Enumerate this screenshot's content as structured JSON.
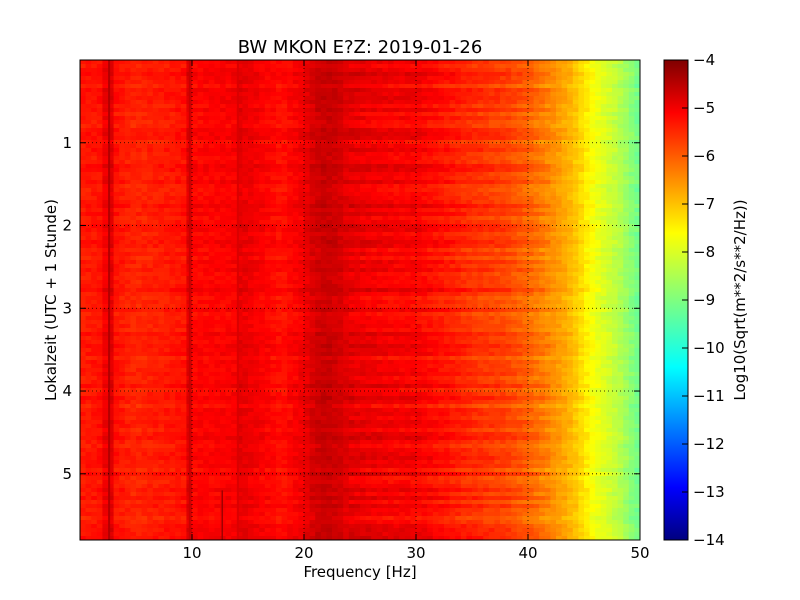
{
  "chart_data": {
    "type": "heatmap",
    "title": "BW MKON E?Z: 2019-01-26",
    "xlabel": "Frequency [Hz]",
    "ylabel": "Lokalzeit (UTC + 1 Stunde)",
    "xlim": [
      0,
      50
    ],
    "ylim": [
      5.8,
      0
    ],
    "x_ticks": [
      10,
      20,
      30,
      40,
      50
    ],
    "y_ticks": [
      1,
      2,
      3,
      4,
      5
    ],
    "grid": true,
    "colorbar": {
      "label": "Log10(Sqrt(m**2/s**2/Hz))",
      "range": [
        -14,
        -4
      ],
      "ticks": [
        -4,
        -5,
        -6,
        -7,
        -8,
        -9,
        -10,
        -11,
        -12,
        -13,
        -14
      ],
      "colormap": "jet"
    },
    "spectrum_profile": {
      "frequency_hz": [
        0,
        2,
        2.6,
        3,
        5,
        9.5,
        9.8,
        10,
        14,
        14.2,
        18,
        20,
        21,
        22,
        23,
        24,
        26,
        28,
        30,
        32,
        35,
        38,
        40,
        42,
        44,
        45,
        46,
        48,
        50
      ],
      "log10_amplitude": [
        -5.5,
        -5.4,
        -4.7,
        -5.4,
        -5.6,
        -5.4,
        -4.9,
        -5.3,
        -5.2,
        -5.0,
        -5.4,
        -5.1,
        -4.8,
        -4.7,
        -4.8,
        -5.0,
        -5.1,
        -5.2,
        -5.2,
        -5.4,
        -5.7,
        -5.9,
        -6.2,
        -6.6,
        -7.1,
        -7.5,
        -7.9,
        -8.4,
        -9.2
      ]
    },
    "vertical_lines_hz": [
      2.6,
      9.8,
      14.1
    ],
    "transient": {
      "frequency_hz": 12.7,
      "time_range": [
        5.2,
        5.8
      ]
    }
  }
}
